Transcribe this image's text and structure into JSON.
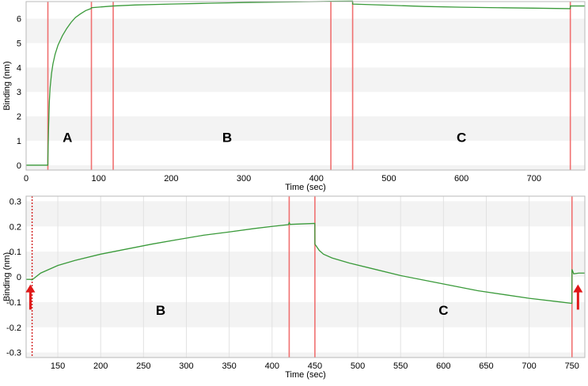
{
  "chart_data": [
    {
      "type": "line",
      "xlabel": "Time (sec)",
      "ylabel": "Binding (nm)",
      "xlim": [
        0,
        770
      ],
      "ylim": [
        -0.2,
        6.7
      ],
      "x_ticks": [
        "0",
        "100",
        "200",
        "300",
        "400",
        "500",
        "600",
        "700"
      ],
      "y_ticks": [
        "0",
        "1",
        "2",
        "3",
        "4",
        "5",
        "6"
      ],
      "grid": "horizontal bands",
      "series_color": "#3a9a3a",
      "marker_color": "#f07070",
      "vertical_markers": [
        30,
        90,
        120,
        420,
        450,
        750
      ],
      "region_labels": [
        {
          "text": "A",
          "x": 57,
          "y": 0.95
        },
        {
          "text": "B",
          "x": 277,
          "y": 0.95
        },
        {
          "text": "C",
          "x": 600,
          "y": 0.95
        }
      ],
      "series": [
        {
          "x": [
            0,
            29.9,
            30,
            31,
            32,
            33,
            35,
            37,
            40,
            44,
            50,
            56,
            62,
            68,
            75,
            82,
            89.9,
            90,
            120,
            150,
            200,
            250,
            300,
            350,
            400,
            419.9,
            420,
            449.9,
            450,
            500,
            550,
            600,
            650,
            700,
            749.9,
            750,
            770
          ],
          "y": [
            0,
            0,
            0.3,
            1.6,
            2.6,
            3.15,
            3.75,
            4.15,
            4.55,
            4.92,
            5.3,
            5.6,
            5.85,
            6.05,
            6.2,
            6.33,
            6.42,
            6.45,
            6.52,
            6.56,
            6.6,
            6.63,
            6.66,
            6.68,
            6.7,
            6.71,
            6.71,
            6.72,
            6.6,
            6.55,
            6.5,
            6.47,
            6.45,
            6.43,
            6.41,
            6.52,
            6.52
          ]
        }
      ]
    },
    {
      "type": "line",
      "xlabel": "Time (sec)",
      "ylabel": "Binding (nm)",
      "xlim": [
        113,
        765
      ],
      "ylim": [
        -0.32,
        0.32
      ],
      "x_ticks": [
        "150",
        "200",
        "250",
        "300",
        "350",
        "400",
        "450",
        "500",
        "550",
        "600",
        "650",
        "700",
        "750"
      ],
      "y_ticks": [
        "0.3",
        "0.2",
        "0.1",
        "0",
        "-0.1",
        "-0.2",
        "-0.3"
      ],
      "grid": "horizontal bands with vertical gridlines",
      "series_color": "#3a9a3a",
      "marker_color": "#f07070",
      "dotted_marker": 120,
      "vertical_markers": [
        420,
        450,
        750
      ],
      "arrows": [
        118,
        757
      ],
      "region_labels": [
        {
          "text": "B",
          "x": 270,
          "y": -0.15
        },
        {
          "text": "C",
          "x": 600,
          "y": -0.15
        }
      ],
      "series": [
        {
          "x": [
            113,
            118,
            120,
            130,
            150,
            170,
            200,
            230,
            260,
            290,
            320,
            350,
            380,
            400,
            419,
            420,
            421,
            435,
            449.9,
            450,
            452,
            455,
            460,
            470,
            490,
            520,
            550,
            580,
            610,
            640,
            670,
            700,
            730,
            749.9,
            750,
            752,
            758,
            765
          ],
          "y": [
            -0.01,
            -0.01,
            -0.012,
            0.015,
            0.045,
            0.065,
            0.09,
            0.11,
            0.13,
            0.148,
            0.165,
            0.178,
            0.192,
            0.2,
            0.207,
            0.215,
            0.208,
            0.21,
            0.212,
            0.13,
            0.12,
            0.105,
            0.09,
            0.075,
            0.055,
            0.03,
            0.005,
            -0.015,
            -0.035,
            -0.055,
            -0.07,
            -0.085,
            -0.097,
            -0.105,
            0.03,
            0.012,
            0.015,
            0.015
          ]
        }
      ]
    }
  ]
}
